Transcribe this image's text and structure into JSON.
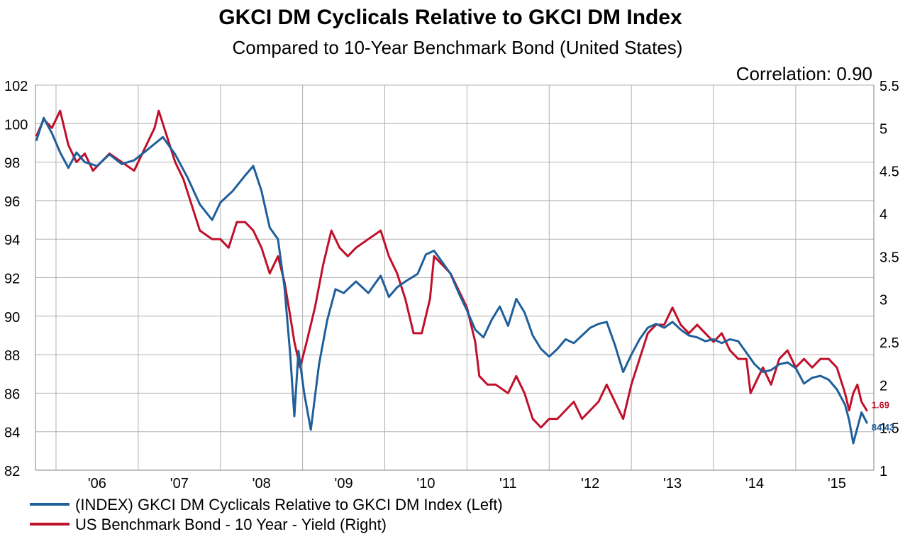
{
  "chart_data": {
    "type": "line",
    "title": "GKCI DM Cyclicals Relative to GKCI DM Index",
    "subtitle": "Compared to 10-Year Benchmark Bond (United States)",
    "annotation": "Correlation: 0.90",
    "x_tick_labels": [
      "'06",
      "'07",
      "'08",
      "'09",
      "'10",
      "'11",
      "'12",
      "'13",
      "'14",
      "'15"
    ],
    "xlim": [
      2005.75,
      2015.95
    ],
    "y_left": {
      "ylim": [
        82,
        102
      ],
      "ticks": [
        "82",
        "84",
        "86",
        "88",
        "90",
        "92",
        "94",
        "96",
        "98",
        "100",
        "102"
      ]
    },
    "y_right": {
      "ylim": [
        1,
        5.5
      ],
      "ticks": [
        "1",
        "1.5",
        "2",
        "2.5",
        "3",
        "3.5",
        "4",
        "4.5",
        "5",
        "5.5"
      ]
    },
    "grid": true,
    "legend_position": "bottom-left",
    "series": [
      {
        "name": "(INDEX) GKCI DM Cyclicals Relative to GKCI DM Index  (Left)",
        "axis": "left",
        "color": "#1f5f9a",
        "last_value_label": "84.43",
        "points": [
          [
            2005.76,
            99.1
          ],
          [
            2005.85,
            100.3
          ],
          [
            2005.95,
            99.5
          ],
          [
            2006.05,
            98.5
          ],
          [
            2006.15,
            97.7
          ],
          [
            2006.25,
            98.5
          ],
          [
            2006.35,
            98.0
          ],
          [
            2006.5,
            97.8
          ],
          [
            2006.65,
            98.4
          ],
          [
            2006.8,
            97.9
          ],
          [
            2006.95,
            98.1
          ],
          [
            2007.1,
            98.6
          ],
          [
            2007.3,
            99.3
          ],
          [
            2007.45,
            98.4
          ],
          [
            2007.6,
            97.2
          ],
          [
            2007.75,
            95.8
          ],
          [
            2007.9,
            95.0
          ],
          [
            2008.0,
            95.9
          ],
          [
            2008.15,
            96.5
          ],
          [
            2008.3,
            97.3
          ],
          [
            2008.4,
            97.8
          ],
          [
            2008.5,
            96.5
          ],
          [
            2008.6,
            94.6
          ],
          [
            2008.7,
            94.0
          ],
          [
            2008.78,
            91.5
          ],
          [
            2008.85,
            88.0
          ],
          [
            2008.9,
            84.8
          ],
          [
            2008.95,
            88.2
          ],
          [
            2009.02,
            86.0
          ],
          [
            2009.1,
            84.1
          ],
          [
            2009.2,
            87.5
          ],
          [
            2009.3,
            89.8
          ],
          [
            2009.4,
            91.4
          ],
          [
            2009.5,
            91.2
          ],
          [
            2009.65,
            91.8
          ],
          [
            2009.8,
            91.2
          ],
          [
            2009.95,
            92.1
          ],
          [
            2010.05,
            91.0
          ],
          [
            2010.15,
            91.5
          ],
          [
            2010.25,
            91.8
          ],
          [
            2010.4,
            92.2
          ],
          [
            2010.5,
            93.2
          ],
          [
            2010.6,
            93.4
          ],
          [
            2010.7,
            92.8
          ],
          [
            2010.8,
            92.2
          ],
          [
            2010.9,
            91.2
          ],
          [
            2011.0,
            90.3
          ],
          [
            2011.1,
            89.3
          ],
          [
            2011.2,
            88.9
          ],
          [
            2011.3,
            89.8
          ],
          [
            2011.4,
            90.5
          ],
          [
            2011.5,
            89.5
          ],
          [
            2011.6,
            90.9
          ],
          [
            2011.7,
            90.2
          ],
          [
            2011.8,
            89.0
          ],
          [
            2011.9,
            88.3
          ],
          [
            2012.0,
            87.9
          ],
          [
            2012.1,
            88.3
          ],
          [
            2012.2,
            88.8
          ],
          [
            2012.3,
            88.6
          ],
          [
            2012.4,
            89.0
          ],
          [
            2012.5,
            89.4
          ],
          [
            2012.6,
            89.6
          ],
          [
            2012.7,
            89.7
          ],
          [
            2012.8,
            88.5
          ],
          [
            2012.9,
            87.1
          ],
          [
            2013.0,
            88.0
          ],
          [
            2013.1,
            88.8
          ],
          [
            2013.2,
            89.4
          ],
          [
            2013.3,
            89.6
          ],
          [
            2013.4,
            89.4
          ],
          [
            2013.5,
            89.7
          ],
          [
            2013.6,
            89.3
          ],
          [
            2013.7,
            89.0
          ],
          [
            2013.8,
            88.9
          ],
          [
            2013.9,
            88.7
          ],
          [
            2014.0,
            88.8
          ],
          [
            2014.1,
            88.6
          ],
          [
            2014.2,
            88.8
          ],
          [
            2014.3,
            88.7
          ],
          [
            2014.4,
            88.1
          ],
          [
            2014.5,
            87.5
          ],
          [
            2014.6,
            87.1
          ],
          [
            2014.7,
            87.2
          ],
          [
            2014.8,
            87.5
          ],
          [
            2014.9,
            87.6
          ],
          [
            2015.0,
            87.3
          ],
          [
            2015.1,
            86.5
          ],
          [
            2015.2,
            86.8
          ],
          [
            2015.3,
            86.9
          ],
          [
            2015.4,
            86.7
          ],
          [
            2015.5,
            86.2
          ],
          [
            2015.6,
            85.4
          ],
          [
            2015.65,
            84.6
          ],
          [
            2015.7,
            83.4
          ],
          [
            2015.75,
            84.2
          ],
          [
            2015.8,
            85.0
          ],
          [
            2015.87,
            84.43
          ]
        ]
      },
      {
        "name": "US Benchmark Bond - 10 Year - Yield  (Right)",
        "axis": "right",
        "color": "#c0102a",
        "last_value_label": "1.69",
        "points": [
          [
            2005.76,
            4.9
          ],
          [
            2005.85,
            5.1
          ],
          [
            2005.95,
            5.0
          ],
          [
            2006.05,
            5.2
          ],
          [
            2006.15,
            4.8
          ],
          [
            2006.25,
            4.6
          ],
          [
            2006.35,
            4.7
          ],
          [
            2006.45,
            4.5
          ],
          [
            2006.55,
            4.6
          ],
          [
            2006.65,
            4.7
          ],
          [
            2006.8,
            4.6
          ],
          [
            2006.95,
            4.5
          ],
          [
            2007.05,
            4.7
          ],
          [
            2007.2,
            5.0
          ],
          [
            2007.25,
            5.2
          ],
          [
            2007.35,
            4.9
          ],
          [
            2007.45,
            4.6
          ],
          [
            2007.55,
            4.4
          ],
          [
            2007.65,
            4.1
          ],
          [
            2007.75,
            3.8
          ],
          [
            2007.9,
            3.7
          ],
          [
            2008.0,
            3.7
          ],
          [
            2008.1,
            3.6
          ],
          [
            2008.2,
            3.9
          ],
          [
            2008.3,
            3.9
          ],
          [
            2008.4,
            3.8
          ],
          [
            2008.5,
            3.6
          ],
          [
            2008.6,
            3.3
          ],
          [
            2008.7,
            3.5
          ],
          [
            2008.78,
            3.2
          ],
          [
            2008.85,
            2.8
          ],
          [
            2008.9,
            2.5
          ],
          [
            2008.97,
            2.2
          ],
          [
            2009.05,
            2.5
          ],
          [
            2009.15,
            2.9
          ],
          [
            2009.25,
            3.4
          ],
          [
            2009.35,
            3.8
          ],
          [
            2009.45,
            3.6
          ],
          [
            2009.55,
            3.5
          ],
          [
            2009.65,
            3.6
          ],
          [
            2009.8,
            3.7
          ],
          [
            2009.95,
            3.8
          ],
          [
            2010.05,
            3.5
          ],
          [
            2010.15,
            3.3
          ],
          [
            2010.25,
            3.0
          ],
          [
            2010.35,
            2.6
          ],
          [
            2010.45,
            2.6
          ],
          [
            2010.55,
            3.0
          ],
          [
            2010.6,
            3.5
          ],
          [
            2010.7,
            3.4
          ],
          [
            2010.8,
            3.3
          ],
          [
            2010.9,
            3.1
          ],
          [
            2011.0,
            2.9
          ],
          [
            2011.1,
            2.5
          ],
          [
            2011.15,
            2.1
          ],
          [
            2011.25,
            2.0
          ],
          [
            2011.35,
            2.0
          ],
          [
            2011.5,
            1.9
          ],
          [
            2011.6,
            2.1
          ],
          [
            2011.7,
            1.9
          ],
          [
            2011.8,
            1.6
          ],
          [
            2011.9,
            1.5
          ],
          [
            2012.0,
            1.6
          ],
          [
            2012.1,
            1.6
          ],
          [
            2012.2,
            1.7
          ],
          [
            2012.3,
            1.8
          ],
          [
            2012.4,
            1.6
          ],
          [
            2012.5,
            1.7
          ],
          [
            2012.6,
            1.8
          ],
          [
            2012.7,
            2.0
          ],
          [
            2012.8,
            1.8
          ],
          [
            2012.9,
            1.6
          ],
          [
            2013.0,
            2.0
          ],
          [
            2013.1,
            2.3
          ],
          [
            2013.2,
            2.6
          ],
          [
            2013.3,
            2.7
          ],
          [
            2013.4,
            2.7
          ],
          [
            2013.5,
            2.9
          ],
          [
            2013.6,
            2.7
          ],
          [
            2013.7,
            2.6
          ],
          [
            2013.8,
            2.7
          ],
          [
            2013.9,
            2.6
          ],
          [
            2014.0,
            2.5
          ],
          [
            2014.1,
            2.6
          ],
          [
            2014.2,
            2.4
          ],
          [
            2014.3,
            2.3
          ],
          [
            2014.4,
            2.3
          ],
          [
            2014.45,
            1.9
          ],
          [
            2014.5,
            2.0
          ],
          [
            2014.6,
            2.2
          ],
          [
            2014.7,
            2.0
          ],
          [
            2014.8,
            2.3
          ],
          [
            2014.9,
            2.4
          ],
          [
            2015.0,
            2.2
          ],
          [
            2015.1,
            2.3
          ],
          [
            2015.2,
            2.2
          ],
          [
            2015.3,
            2.3
          ],
          [
            2015.4,
            2.3
          ],
          [
            2015.5,
            2.2
          ],
          [
            2015.6,
            1.9
          ],
          [
            2015.65,
            1.7
          ],
          [
            2015.7,
            1.9
          ],
          [
            2015.75,
            2.0
          ],
          [
            2015.8,
            1.8
          ],
          [
            2015.87,
            1.69
          ]
        ]
      }
    ]
  }
}
